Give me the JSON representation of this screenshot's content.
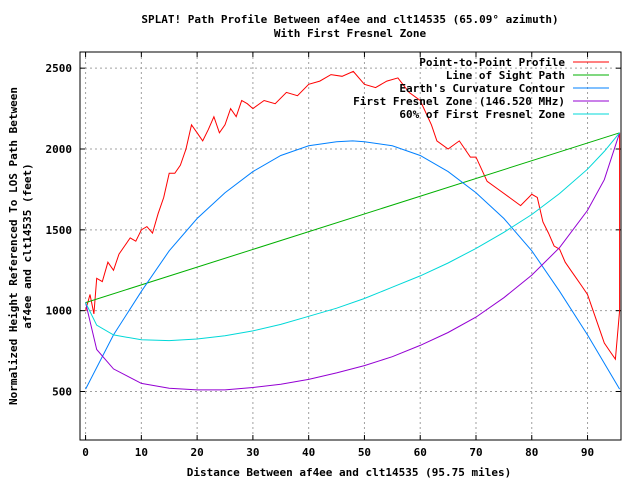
{
  "chart_data": {
    "type": "line",
    "title": "SPLAT! Path Profile Between af4ee and clt14535 (65.09° azimuth)",
    "subtitle": "With First Fresnel Zone",
    "xlabel": "Distance Between af4ee and clt14535 (95.75 miles)",
    "ylabel_line1": "Normalized Height Referenced To LOS Path Between",
    "ylabel_line2": "af4ee and clt14535 (feet)",
    "xlim": [
      -1,
      96
    ],
    "ylim": [
      200,
      2600
    ],
    "x_ticks": [
      "0",
      "10",
      "20",
      "30",
      "40",
      "50",
      "60",
      "70",
      "80",
      "90"
    ],
    "y_ticks": [
      "500",
      "1000",
      "1500",
      "2000",
      "2500"
    ],
    "grid": true,
    "legend_position": "top-right",
    "series": [
      {
        "name": "Point-to-Point Profile",
        "color": "#ff0000",
        "x": [
          0,
          0.8,
          1.5,
          2,
          3,
          4,
          5,
          6,
          7,
          8,
          9,
          10,
          11,
          12,
          13,
          14,
          15,
          16,
          17,
          18,
          19,
          20,
          21,
          22,
          23,
          24,
          25,
          26,
          27,
          28,
          29,
          30,
          32,
          34,
          36,
          38,
          40,
          42,
          44,
          46,
          48,
          50,
          52,
          54,
          56,
          58,
          60,
          62,
          63,
          65,
          67,
          69,
          70,
          72,
          74,
          76,
          78,
          80,
          81,
          82,
          83,
          84,
          85,
          86,
          87,
          88,
          89,
          90,
          91,
          92,
          93,
          94,
          95,
          95.75,
          95.75
        ],
        "y": [
          1000,
          1100,
          980,
          1200,
          1180,
          1300,
          1250,
          1350,
          1400,
          1450,
          1430,
          1500,
          1520,
          1480,
          1600,
          1700,
          1850,
          1850,
          1900,
          2000,
          2150,
          2100,
          2050,
          2120,
          2200,
          2100,
          2150,
          2250,
          2200,
          2300,
          2280,
          2250,
          2300,
          2280,
          2350,
          2330,
          2400,
          2420,
          2460,
          2450,
          2480,
          2400,
          2380,
          2420,
          2440,
          2350,
          2300,
          2150,
          2050,
          2000,
          2050,
          1950,
          1950,
          1800,
          1750,
          1700,
          1650,
          1720,
          1700,
          1550,
          1480,
          1400,
          1380,
          1300,
          1250,
          1200,
          1150,
          1100,
          1000,
          900,
          800,
          750,
          700,
          1000,
          2100
        ]
      },
      {
        "name": "Line of Sight Path",
        "color": "#00b000",
        "x": [
          0,
          95.75
        ],
        "y": [
          1050,
          2100
        ]
      },
      {
        "name": "Earth's Curvature Contour",
        "color": "#0080ff",
        "x": [
          0,
          5,
          10,
          15,
          20,
          25,
          30,
          35,
          40,
          45,
          47.9,
          50,
          55,
          60,
          65,
          70,
          75,
          80,
          85,
          90,
          95.75
        ],
        "y": [
          515,
          850,
          1120,
          1370,
          1570,
          1730,
          1860,
          1960,
          2020,
          2045,
          2050,
          2045,
          2020,
          1960,
          1860,
          1730,
          1570,
          1370,
          1120,
          850,
          515
        ]
      },
      {
        "name": "First Fresnel Zone (146.520 MHz)",
        "color": "#9400d3",
        "x": [
          0,
          2,
          5,
          10,
          15,
          20,
          25,
          30,
          35,
          40,
          45,
          50,
          55,
          60,
          65,
          70,
          75,
          80,
          85,
          90,
          93,
          95.75
        ],
        "y": [
          1050,
          760,
          640,
          550,
          520,
          510,
          510,
          525,
          545,
          575,
          615,
          660,
          715,
          785,
          865,
          960,
          1080,
          1220,
          1390,
          1620,
          1810,
          2100
        ]
      },
      {
        "name": "60% of First Fresnel Zone",
        "color": "#00d8d8",
        "x": [
          0,
          2,
          5,
          10,
          15,
          20,
          25,
          30,
          35,
          40,
          45,
          50,
          55,
          60,
          65,
          70,
          75,
          80,
          85,
          90,
          93,
          95.75
        ],
        "y": [
          1050,
          910,
          850,
          820,
          815,
          825,
          845,
          875,
          915,
          965,
          1015,
          1075,
          1145,
          1215,
          1295,
          1385,
          1485,
          1595,
          1725,
          1875,
          1985,
          2100
        ]
      }
    ]
  }
}
